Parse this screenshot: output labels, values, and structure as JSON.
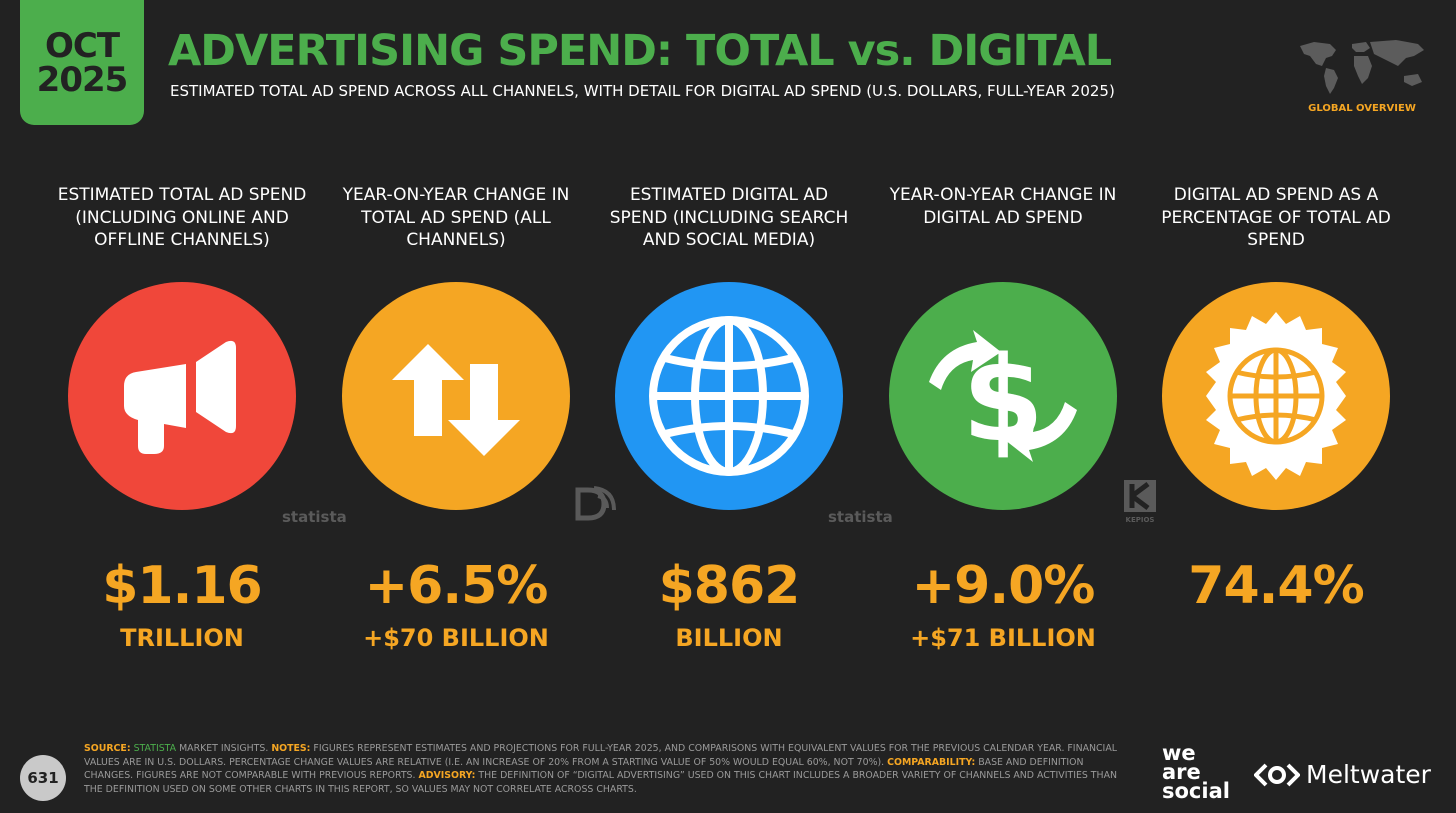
{
  "badge": {
    "month": "OCT",
    "year": "2025"
  },
  "header": {
    "title": "ADVERTISING SPEND: TOTAL vs. DIGITAL",
    "subtitle": "ESTIMATED TOTAL AD SPEND ACROSS ALL CHANNELS, WITH DETAIL FOR DIGITAL AD SPEND (U.S. DOLLARS, FULL-YEAR 2025)",
    "section_label": "GLOBAL OVERVIEW"
  },
  "colors": {
    "background": "#222222",
    "green": "#4cae4c",
    "orange": "#f5a623",
    "red": "#f0473a",
    "blue": "#2196f3"
  },
  "metrics": [
    {
      "heading": "ESTIMATED TOTAL AD SPEND (INCLUDING ONLINE AND OFFLINE CHANNELS)",
      "icon": "megaphone-icon",
      "circle_color": "#f0473a",
      "value": "$1.16",
      "sub": "TRILLION",
      "source_logo": "statista"
    },
    {
      "heading": "YEAR-ON-YEAR CHANGE IN TOTAL AD SPEND (ALL CHANNELS)",
      "icon": "up-down-arrows-icon",
      "circle_color": "#f5a623",
      "value": "+6.5%",
      "sub": "+$70 BILLION",
      "source_logo": "datareportal"
    },
    {
      "heading": "ESTIMATED DIGITAL AD SPEND (INCLUDING SEARCH AND SOCIAL MEDIA)",
      "icon": "globe-icon",
      "circle_color": "#2196f3",
      "value": "$862",
      "sub": "BILLION",
      "source_logo": "statista"
    },
    {
      "heading": "YEAR-ON-YEAR CHANGE IN DIGITAL AD SPEND",
      "icon": "dollar-exchange-icon",
      "circle_color": "#4cae4c",
      "value": "+9.0%",
      "sub": "+$71 BILLION",
      "source_logo": "KEPIOS"
    },
    {
      "heading": "DIGITAL AD SPEND AS A PERCENTAGE OF TOTAL AD SPEND",
      "icon": "globe-badge-icon",
      "circle_color": "#f5a623",
      "value": "74.4%",
      "sub": "",
      "source_logo": ""
    }
  ],
  "footer": {
    "page_number": "631",
    "source_key": "SOURCE:",
    "source_name": "STATISTA",
    "source_rest": "MARKET INSIGHTS.",
    "notes_key": "NOTES:",
    "notes_text": "FIGURES REPRESENT ESTIMATES AND PROJECTIONS FOR FULL-YEAR 2025, AND COMPARISONS WITH EQUIVALENT VALUES FOR THE PREVIOUS CALENDAR YEAR. FINANCIAL VALUES ARE IN U.S. DOLLARS. PERCENTAGE CHANGE VALUES ARE RELATIVE (I.E. AN INCREASE OF 20% FROM A STARTING VALUE OF 50% WOULD EQUAL 60%, NOT 70%).",
    "comparability_key": "COMPARABILITY:",
    "comparability_text": "BASE AND DEFINITION CHANGES. FIGURES ARE NOT COMPARABLE WITH PREVIOUS REPORTS.",
    "advisory_key": "ADVISORY:",
    "advisory_text": "THE DEFINITION OF “DIGITAL ADVERTISING” USED ON THIS CHART INCLUDES A BROADER VARIETY OF CHANNELS AND ACTIVITIES THAN THE DEFINITION USED ON SOME OTHER CHARTS IN THIS REPORT, SO VALUES MAY NOT CORRELATE ACROSS CHARTS."
  },
  "brands": {
    "was_line1": "we",
    "was_line2": "are",
    "was_line3": "social",
    "meltwater": "Meltwater"
  }
}
